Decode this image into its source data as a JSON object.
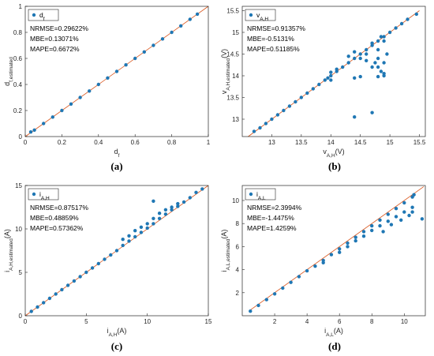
{
  "colors": {
    "marker": "#1f77b4",
    "ideal_line": "#d9541a",
    "axes": "#262626"
  },
  "chart_data": [
    {
      "type": "scatter",
      "panel_label": "(a)",
      "legend": {
        "label": "d",
        "sub": "f",
        "placement": "top-left"
      },
      "xlabel": {
        "main": "d",
        "sub": "f",
        "unit": ""
      },
      "ylabel": {
        "main": "d",
        "sub": "f,estimated",
        "unit": ""
      },
      "xlim": [
        0,
        1
      ],
      "ylim": [
        0,
        1
      ],
      "xticks": [
        0,
        0.2,
        0.4,
        0.6,
        0.8,
        1
      ],
      "yticks": [
        0,
        0.2,
        0.4,
        0.6,
        0.8,
        1
      ],
      "xtick_labels": [
        "0",
        "0.2",
        "0.4",
        "0.6",
        "0.8",
        "1"
      ],
      "ytick_labels": [
        "0",
        "0.2",
        "0.4",
        "0.6",
        "0.8",
        "1"
      ],
      "ideal_line": [
        [
          0,
          0
        ],
        [
          1,
          1
        ]
      ],
      "stats": [
        "NRMSE=0.29622%",
        "MBE=0.13071%",
        "MAPE=0.6672%"
      ],
      "series": [
        {
          "points": [
            [
              0.03,
              0.035
            ],
            [
              0.05,
              0.05
            ],
            [
              0.1,
              0.1
            ],
            [
              0.15,
              0.15
            ],
            [
              0.2,
              0.2
            ],
            [
              0.25,
              0.25
            ],
            [
              0.3,
              0.3
            ],
            [
              0.35,
              0.35
            ],
            [
              0.4,
              0.4
            ],
            [
              0.45,
              0.45
            ],
            [
              0.5,
              0.5
            ],
            [
              0.55,
              0.55
            ],
            [
              0.6,
              0.6
            ],
            [
              0.65,
              0.65
            ],
            [
              0.7,
              0.7
            ],
            [
              0.75,
              0.75
            ],
            [
              0.8,
              0.8
            ],
            [
              0.85,
              0.85
            ],
            [
              0.9,
              0.9
            ],
            [
              0.94,
              0.94
            ]
          ]
        }
      ]
    },
    {
      "type": "scatter",
      "panel_label": "(b)",
      "legend": {
        "label": "v",
        "sub": "A,H",
        "placement": "top-left"
      },
      "xlabel": {
        "main": "v",
        "sub": "A,H",
        "unit": "(V)"
      },
      "ylabel": {
        "main": "v",
        "sub": "A,H,estimated",
        "unit": "(V)"
      },
      "xlim": [
        12.5,
        15.6
      ],
      "ylim": [
        12.6,
        15.6
      ],
      "xticks": [
        13,
        13.5,
        14,
        14.5,
        15,
        15.5
      ],
      "yticks": [
        13,
        13.5,
        14,
        14.5,
        15,
        15.5
      ],
      "xtick_labels": [
        "13",
        "13.5",
        "14",
        "14.5",
        "15",
        "15.5"
      ],
      "ytick_labels": [
        "13",
        "13.5",
        "14",
        "14.5",
        "15",
        "15.5"
      ],
      "ideal_line": [
        [
          12.6,
          12.6
        ],
        [
          15.5,
          15.5
        ]
      ],
      "stats": [
        "NRMSE=0.91357%",
        "MBE=-0.5131%",
        "MAPE=0.51185%"
      ],
      "series": [
        {
          "points": [
            [
              12.7,
              12.72
            ],
            [
              12.8,
              12.8
            ],
            [
              12.9,
              12.9
            ],
            [
              13.0,
              13.0
            ],
            [
              13.1,
              13.1
            ],
            [
              13.2,
              13.2
            ],
            [
              13.3,
              13.3
            ],
            [
              13.4,
              13.4
            ],
            [
              13.5,
              13.5
            ],
            [
              13.6,
              13.6
            ],
            [
              13.7,
              13.7
            ],
            [
              13.8,
              13.8
            ],
            [
              13.9,
              13.9
            ],
            [
              14.0,
              14.0
            ],
            [
              14.1,
              14.1
            ],
            [
              14.2,
              14.2
            ],
            [
              14.3,
              14.3
            ],
            [
              14.4,
              14.4
            ],
            [
              14.5,
              14.5
            ],
            [
              14.6,
              14.6
            ],
            [
              14.7,
              14.7
            ],
            [
              14.8,
              14.8
            ],
            [
              14.9,
              14.9
            ],
            [
              15.0,
              15.0
            ],
            [
              15.1,
              15.1
            ],
            [
              15.2,
              15.2
            ],
            [
              15.3,
              15.3
            ],
            [
              15.45,
              15.42
            ],
            [
              14.3,
              14.45
            ],
            [
              14.4,
              14.55
            ],
            [
              14.5,
              14.4
            ],
            [
              14.6,
              14.5
            ],
            [
              14.7,
              14.75
            ],
            [
              14.75,
              14.3
            ],
            [
              14.8,
              14.2
            ],
            [
              14.85,
              14.1
            ],
            [
              14.9,
              14.0
            ],
            [
              14.8,
              14.6
            ],
            [
              14.9,
              14.8
            ],
            [
              14.95,
              14.5
            ],
            [
              14.85,
              14.9
            ],
            [
              14.9,
              14.3
            ],
            [
              14.7,
              14.2
            ],
            [
              14.8,
              14.4
            ],
            [
              14.6,
              14.35
            ],
            [
              14.9,
              14.05
            ],
            [
              14.8,
              13.98
            ],
            [
              14.4,
              13.95
            ],
            [
              14.5,
              13.98
            ],
            [
              14.0,
              13.9
            ],
            [
              13.95,
              13.95
            ],
            [
              14.1,
              14.15
            ],
            [
              14.0,
              14.08
            ],
            [
              14.4,
              13.05
            ],
            [
              14.7,
              13.15
            ]
          ]
        }
      ]
    },
    {
      "type": "scatter",
      "panel_label": "(c)",
      "legend": {
        "label": "i",
        "sub": "A,H",
        "placement": "top-left"
      },
      "xlabel": {
        "main": "i",
        "sub": "A,H",
        "unit": "(A)"
      },
      "ylabel": {
        "main": "i",
        "sub": "A,H,estimated",
        "unit": "(A)"
      },
      "xlim": [
        0,
        15
      ],
      "ylim": [
        0,
        15
      ],
      "xticks": [
        0,
        5,
        10,
        15
      ],
      "yticks": [
        0,
        5,
        10,
        15
      ],
      "xtick_labels": [
        "0",
        "5",
        "10",
        "15"
      ],
      "ytick_labels": [
        "0",
        "5",
        "10",
        "15"
      ],
      "ideal_line": [
        [
          0,
          0
        ],
        [
          15,
          15
        ]
      ],
      "stats": [
        "NRMSE=0.87517%",
        "MBE=0.48859%",
        "MAPE=0.57362%"
      ],
      "series": [
        {
          "points": [
            [
              0.5,
              0.5
            ],
            [
              1,
              1
            ],
            [
              1.5,
              1.5
            ],
            [
              2,
              2
            ],
            [
              2.5,
              2.5
            ],
            [
              3,
              3
            ],
            [
              3.5,
              3.5
            ],
            [
              4,
              4
            ],
            [
              4.5,
              4.5
            ],
            [
              5,
              5
            ],
            [
              5.5,
              5.5
            ],
            [
              6,
              6
            ],
            [
              6.5,
              6.5
            ],
            [
              7,
              7
            ],
            [
              7.5,
              7.5
            ],
            [
              8,
              8.1
            ],
            [
              8.5,
              8.6
            ],
            [
              9,
              9.1
            ],
            [
              9.5,
              9.6
            ],
            [
              10,
              10.1
            ],
            [
              10.5,
              10.6
            ],
            [
              11,
              11.2
            ],
            [
              11.5,
              11.7
            ],
            [
              12,
              12.2
            ],
            [
              12.5,
              12.6
            ],
            [
              13,
              13.1
            ],
            [
              13.5,
              13.6
            ],
            [
              14,
              14.2
            ],
            [
              14.5,
              14.6
            ],
            [
              8,
              8.8
            ],
            [
              8.5,
              9.2
            ],
            [
              9,
              9.8
            ],
            [
              9.5,
              10.2
            ],
            [
              10,
              10.6
            ],
            [
              10.5,
              11.2
            ],
            [
              11,
              11.8
            ],
            [
              11.5,
              12.2
            ],
            [
              12,
              12.5
            ],
            [
              12.5,
              12.9
            ],
            [
              10.5,
              13.2
            ]
          ]
        }
      ]
    },
    {
      "type": "scatter",
      "panel_label": "(d)",
      "legend": {
        "label": "i",
        "sub": "A,L",
        "placement": "top-left"
      },
      "xlabel": {
        "main": "i",
        "sub": "A,L",
        "unit": "(A)"
      },
      "ylabel": {
        "main": "i",
        "sub": "A,L,estimated",
        "unit": "(A)"
      },
      "xlim": [
        0,
        11.3
      ],
      "ylim": [
        0,
        11.3
      ],
      "xticks": [
        2,
        4,
        6,
        8,
        10
      ],
      "yticks": [
        2,
        4,
        6,
        8,
        10
      ],
      "xtick_labels": [
        "2",
        "4",
        "6",
        "8",
        "10"
      ],
      "ytick_labels": [
        "2",
        "4",
        "6",
        "8",
        "10"
      ],
      "ideal_line": [
        [
          0.5,
          0.5
        ],
        [
          11.2,
          11.2
        ]
      ],
      "stats": [
        "NRMSE=2.3994%",
        "MBE=-1.4475%",
        "MAPE=1.4259%"
      ],
      "series": [
        {
          "points": [
            [
              0.5,
              0.4
            ],
            [
              1,
              0.9
            ],
            [
              1.5,
              1.4
            ],
            [
              2,
              1.9
            ],
            [
              2.5,
              2.4
            ],
            [
              3,
              2.9
            ],
            [
              3.5,
              3.4
            ],
            [
              4,
              3.9
            ],
            [
              4.5,
              4.3
            ],
            [
              5,
              4.8
            ],
            [
              5.5,
              5.3
            ],
            [
              6,
              5.8
            ],
            [
              6.5,
              6.3
            ],
            [
              7,
              6.8
            ],
            [
              7.5,
              7.3
            ],
            [
              8,
              7.8
            ],
            [
              8.5,
              8.3
            ],
            [
              9,
              8.8
            ],
            [
              9.5,
              9.3
            ],
            [
              10,
              9.8
            ],
            [
              10.5,
              10.3
            ],
            [
              10.6,
              10.5
            ],
            [
              5,
              4.6
            ],
            [
              6,
              5.5
            ],
            [
              6.5,
              6.0
            ],
            [
              7,
              6.5
            ],
            [
              7.5,
              6.9
            ],
            [
              8,
              7.4
            ],
            [
              8.5,
              7.8
            ],
            [
              9,
              8.2
            ],
            [
              9.5,
              8.6
            ],
            [
              10,
              9.0
            ],
            [
              10.5,
              9.4
            ],
            [
              10.5,
              9.0
            ],
            [
              9.2,
              7.9
            ],
            [
              8.7,
              7.3
            ],
            [
              9.8,
              8.3
            ],
            [
              10.3,
              8.7
            ],
            [
              11.1,
              8.4
            ]
          ]
        }
      ]
    }
  ]
}
